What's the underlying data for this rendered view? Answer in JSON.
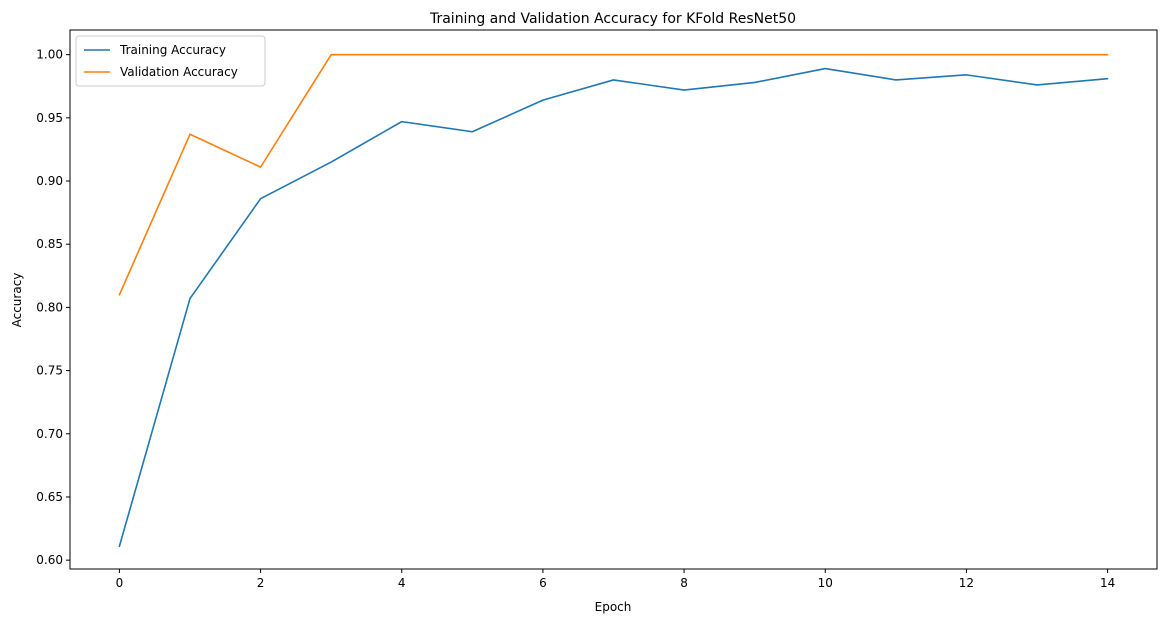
{
  "chart_data": {
    "type": "line",
    "title": "Training and Validation Accuracy for KFold ResNet50",
    "xlabel": "Epoch",
    "ylabel": "Accuracy",
    "x": [
      0,
      1,
      2,
      3,
      4,
      5,
      6,
      7,
      8,
      9,
      10,
      11,
      12,
      13,
      14
    ],
    "xlim": [
      -0.7,
      14.7
    ],
    "ylim": [
      0.593,
      1.0195
    ],
    "xticks": [
      "0",
      "2",
      "4",
      "6",
      "8",
      "10",
      "12",
      "14"
    ],
    "yticks": [
      "0.60",
      "0.65",
      "0.70",
      "0.75",
      "0.80",
      "0.85",
      "0.90",
      "0.95",
      "1.00"
    ],
    "grid": false,
    "legend_position": "top-left",
    "series": [
      {
        "name": "Training Accuracy",
        "color": "#1f77b4",
        "values": [
          0.611,
          0.807,
          0.886,
          0.915,
          0.947,
          0.939,
          0.964,
          0.98,
          0.972,
          0.978,
          0.989,
          0.98,
          0.984,
          0.976,
          0.981
        ]
      },
      {
        "name": "Validation Accuracy",
        "color": "#ff7f0e",
        "values": [
          0.81,
          0.937,
          0.911,
          1.0,
          1.0,
          1.0,
          1.0,
          1.0,
          1.0,
          1.0,
          1.0,
          1.0,
          1.0,
          1.0,
          1.0
        ]
      }
    ]
  }
}
